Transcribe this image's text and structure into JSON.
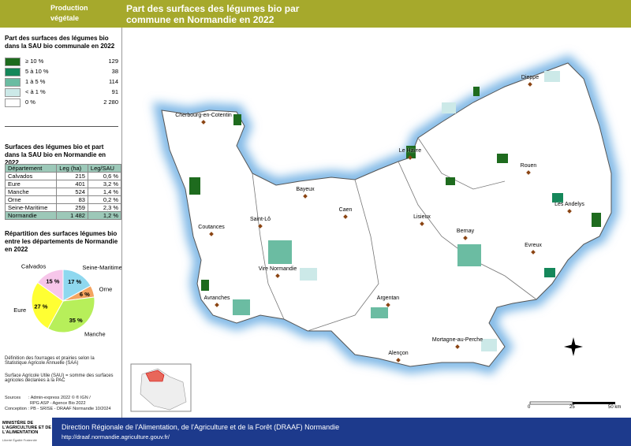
{
  "header": {
    "section": "Production végétale",
    "title": "Part des surfaces des légumes bio par commune en Normandie en 2022"
  },
  "legend": {
    "title": "Part des surfaces des légumes bio dans la SAU bio communale en 2022",
    "items": [
      {
        "label": "≥ 10 %",
        "count": "129",
        "color": "#1e6b1e"
      },
      {
        "label": "5 à 10 %",
        "count": "38",
        "color": "#15875a"
      },
      {
        "label": "1 à 5 %",
        "count": "114",
        "color": "#6bbca2"
      },
      {
        "label": "< à 1 %",
        "count": "91",
        "color": "#cce9e8"
      },
      {
        "label": "0 %",
        "count": "2 280",
        "color": "#ffffff"
      }
    ]
  },
  "table": {
    "title": "Surfaces des légumes bio et part dans la SAU bio en Normandie en 2022",
    "columns": [
      "Département",
      "Leg (ha)",
      "Leg/SAU"
    ],
    "rows": [
      [
        "Calvados",
        "215",
        "0,6 %"
      ],
      [
        "Eure",
        "401",
        "3,2 %"
      ],
      [
        "Manche",
        "524",
        "1,4 %"
      ],
      [
        "Orne",
        "83",
        "0,2 %"
      ],
      [
        "Seine-Maritime",
        "259",
        "2,3 %"
      ],
      [
        "Normandie",
        "1 482",
        "1,2 %"
      ]
    ]
  },
  "chart_data": {
    "type": "pie",
    "title": "Répartition des surfaces légumes bio entre les départements de Normandie en 2022",
    "categories": [
      "Seine-Maritime",
      "Orne",
      "Manche",
      "Eure",
      "Calvados"
    ],
    "values": [
      17,
      6,
      35,
      27,
      15
    ],
    "value_labels": [
      "17 %",
      "6 %",
      "35 %",
      "27 %",
      "15 %"
    ],
    "colors": [
      "#8fd8ef",
      "#f4a460",
      "#b7ef5a",
      "#ffff33",
      "#f7c6ea"
    ]
  },
  "notes": [
    "Définition des fourrages et prairies selon la Statistique Agricole Annuelle (SAA)",
    "Surface Agricole Utile (SAU) = somme des surfaces agricoles déclarées à la PAC"
  ],
  "sources": [
    "Sources",
    ": Admin-express 2022 © ® IGN /",
    "RPG ASP - Agence Bio 2022",
    "Conception : PB - SRISE - DRAAF Normandie 10/2024"
  ],
  "cities": [
    "Dieppe",
    "Cherbourg-en-Cotentin",
    "Le Havre",
    "Rouen",
    "Bayeux",
    "Caen",
    "Saint-Lô",
    "Lisieux",
    "Les Andelys",
    "Coutances",
    "Bernay",
    "Evreux",
    "Vire Normandie",
    "Avranches",
    "Argentan",
    "Alençon",
    "Mortagne-au-Perche"
  ],
  "scale": [
    "0",
    "25",
    "50 km"
  ],
  "footer": {
    "ministry": "MINISTÈRE DE L'AGRICULTURE ET DE L'ALIMENTATION",
    "motto": "Liberté Égalité Fraternité",
    "org": "Direction Régionale de l'Alimentation, de l'Agriculture et de la Forêt (DRAAF) Normandie",
    "url": "http://draaf.normandie.agriculture.gouv.fr/"
  }
}
